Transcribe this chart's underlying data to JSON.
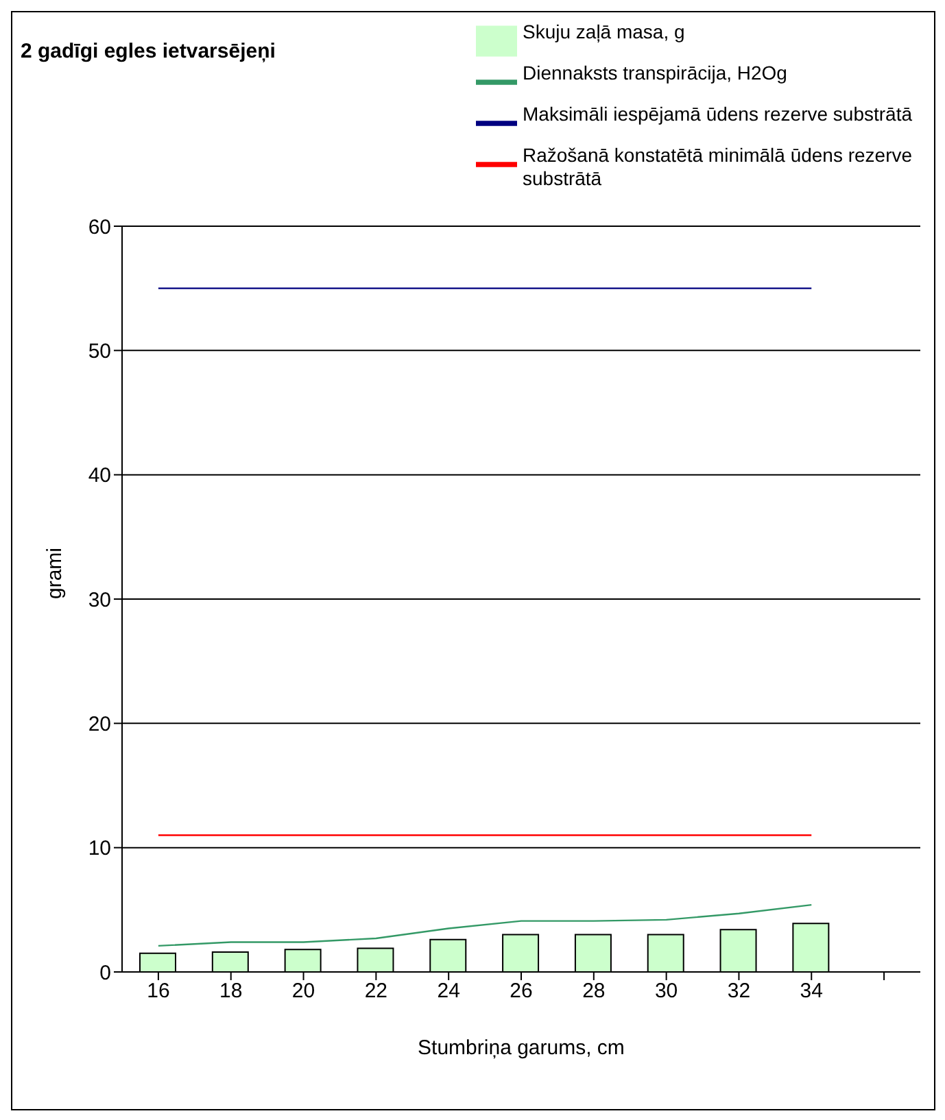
{
  "chart_data": {
    "type": "bar",
    "title": "2 gadīgi egles ietvarsējeņi",
    "xlabel": "Stumbriņa garums, cm",
    "ylabel": "grami",
    "categories": [
      "16",
      "18",
      "20",
      "22",
      "24",
      "26",
      "28",
      "30",
      "32",
      "34",
      null
    ],
    "series": [
      {
        "name": "Skuju zaļā masa, g",
        "color": "#ccffcc",
        "values": [
          1.5,
          1.6,
          1.8,
          1.9,
          2.6,
          3,
          3,
          3,
          3.4,
          3.9,
          null
        ]
      },
      {
        "name": "Diennaksts transpirācija, H2Og",
        "type": "line",
        "color": "#339966",
        "values": [
          2.1,
          2.4,
          2.4,
          2.7,
          3.5,
          4.1,
          4.1,
          4.2,
          4.7,
          5.4,
          null
        ]
      },
      {
        "name": "Maksimāli iespējamā ūdens rezerve substrātā",
        "type": "line",
        "color": "#000080",
        "values": [
          55,
          55,
          55,
          55,
          55,
          55,
          55,
          55,
          55,
          55,
          null
        ]
      },
      {
        "name": "Ražošanā konstatētā minimālā ūdens rezerve substrātā",
        "type": "line",
        "color": "#ff0000",
        "values": [
          11,
          11,
          11,
          11,
          11,
          11,
          11,
          11,
          11,
          11,
          null
        ]
      }
    ],
    "ylim": [
      0,
      60
    ],
    "yticks": [
      0,
      10,
      20,
      30,
      40,
      50,
      60
    ],
    "grid": "y",
    "legend": "top right",
    "marker": "none",
    "line_style": "solid"
  }
}
